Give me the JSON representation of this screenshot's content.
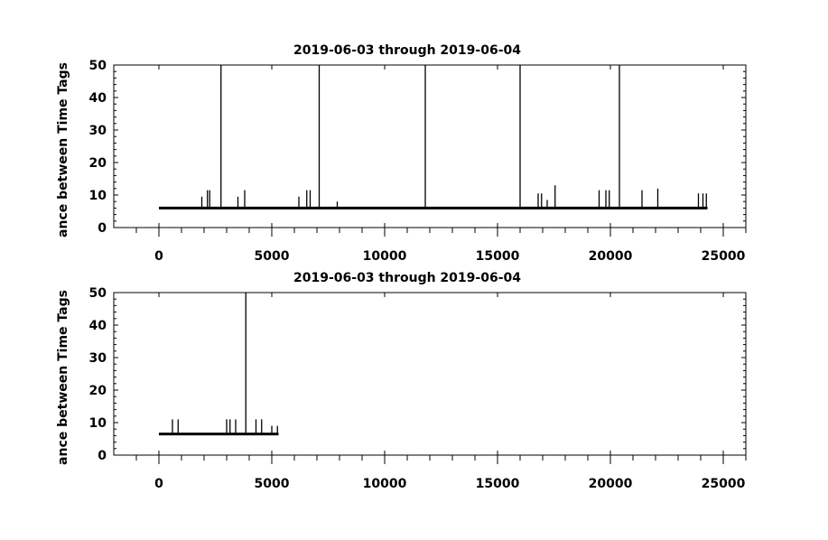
{
  "chart_data": [
    {
      "type": "line",
      "title": "2019-06-03 through 2019-06-04",
      "ylabel": "ance between Time Tags",
      "xlabel": "",
      "xlim": [
        -2000,
        26000
      ],
      "ylim": [
        0,
        50
      ],
      "xticks": [
        0,
        5000,
        10000,
        15000,
        20000,
        25000
      ],
      "yticks": [
        0,
        10,
        20,
        30,
        40,
        50
      ],
      "grid": false,
      "baseline": {
        "x": [
          0,
          24300
        ],
        "y": 6
      },
      "spikes": [
        {
          "x": 1900,
          "y": 9.5
        },
        {
          "x": 2150,
          "y": 11.5
        },
        {
          "x": 2250,
          "y": 11.5
        },
        {
          "x": 2750,
          "y": 50
        },
        {
          "x": 3500,
          "y": 9.5
        },
        {
          "x": 3800,
          "y": 11.5
        },
        {
          "x": 6200,
          "y": 9.5
        },
        {
          "x": 6550,
          "y": 11.5
        },
        {
          "x": 6700,
          "y": 11.5
        },
        {
          "x": 7100,
          "y": 50
        },
        {
          "x": 7900,
          "y": 8
        },
        {
          "x": 11800,
          "y": 50
        },
        {
          "x": 16000,
          "y": 50
        },
        {
          "x": 16800,
          "y": 10.5
        },
        {
          "x": 16950,
          "y": 10.5
        },
        {
          "x": 17200,
          "y": 8.5
        },
        {
          "x": 17550,
          "y": 13
        },
        {
          "x": 19500,
          "y": 11.5
        },
        {
          "x": 19800,
          "y": 11.5
        },
        {
          "x": 19950,
          "y": 11.5
        },
        {
          "x": 20400,
          "y": 50
        },
        {
          "x": 21400,
          "y": 11.5
        },
        {
          "x": 22100,
          "y": 12
        },
        {
          "x": 23900,
          "y": 10.5
        },
        {
          "x": 24100,
          "y": 10.5
        },
        {
          "x": 24250,
          "y": 10.5
        }
      ]
    },
    {
      "type": "line",
      "title": "2019-06-03 through 2019-06-04",
      "ylabel": "ance between Time Tags",
      "xlabel": "",
      "xlim": [
        -2000,
        26000
      ],
      "ylim": [
        0,
        50
      ],
      "xticks": [
        0,
        5000,
        10000,
        15000,
        20000,
        25000
      ],
      "yticks": [
        0,
        10,
        20,
        30,
        40,
        50
      ],
      "grid": false,
      "baseline": {
        "x": [
          0,
          5300
        ],
        "y": 6.5
      },
      "spikes": [
        {
          "x": 600,
          "y": 11
        },
        {
          "x": 850,
          "y": 11
        },
        {
          "x": 3000,
          "y": 11
        },
        {
          "x": 3150,
          "y": 11
        },
        {
          "x": 3400,
          "y": 11
        },
        {
          "x": 3850,
          "y": 50
        },
        {
          "x": 4300,
          "y": 11
        },
        {
          "x": 4550,
          "y": 11
        },
        {
          "x": 5000,
          "y": 9
        },
        {
          "x": 5250,
          "y": 9
        }
      ]
    }
  ]
}
